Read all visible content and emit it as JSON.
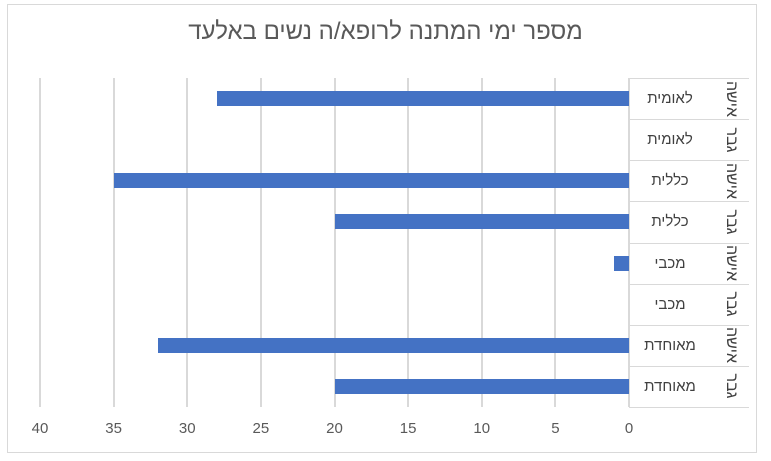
{
  "chart_data": {
    "type": "bar",
    "orientation": "horizontal",
    "title": "מספר ימי המתנה לרופא/ה נשים באלעד",
    "xlabel": "",
    "ylabel": "",
    "xlim": [
      0,
      40
    ],
    "x_reversed": true,
    "grid": true,
    "legend": null,
    "ticks": [
      "0",
      "5",
      "10",
      "15",
      "20",
      "25",
      "30",
      "35",
      "40"
    ],
    "categories": [
      {
        "group": "לאומית",
        "gender": "אישה",
        "value": 28
      },
      {
        "group": "לאומית",
        "gender": "גבר",
        "value": 0
      },
      {
        "group": "כללית",
        "gender": "אישה",
        "value": 35
      },
      {
        "group": "כללית",
        "gender": "גבר",
        "value": 20
      },
      {
        "group": "מכבי",
        "gender": "אישה",
        "value": 1
      },
      {
        "group": "מכבי",
        "gender": "גבר",
        "value": 0
      },
      {
        "group": "מאוחדת",
        "gender": "אישה",
        "value": 32
      },
      {
        "group": "מאוחדת",
        "gender": "גבר",
        "value": 20
      }
    ],
    "series": [
      {
        "name": "ימי המתנה",
        "color": "#4472c4",
        "values": [
          28,
          0,
          35,
          20,
          1,
          0,
          32,
          20
        ]
      }
    ]
  }
}
